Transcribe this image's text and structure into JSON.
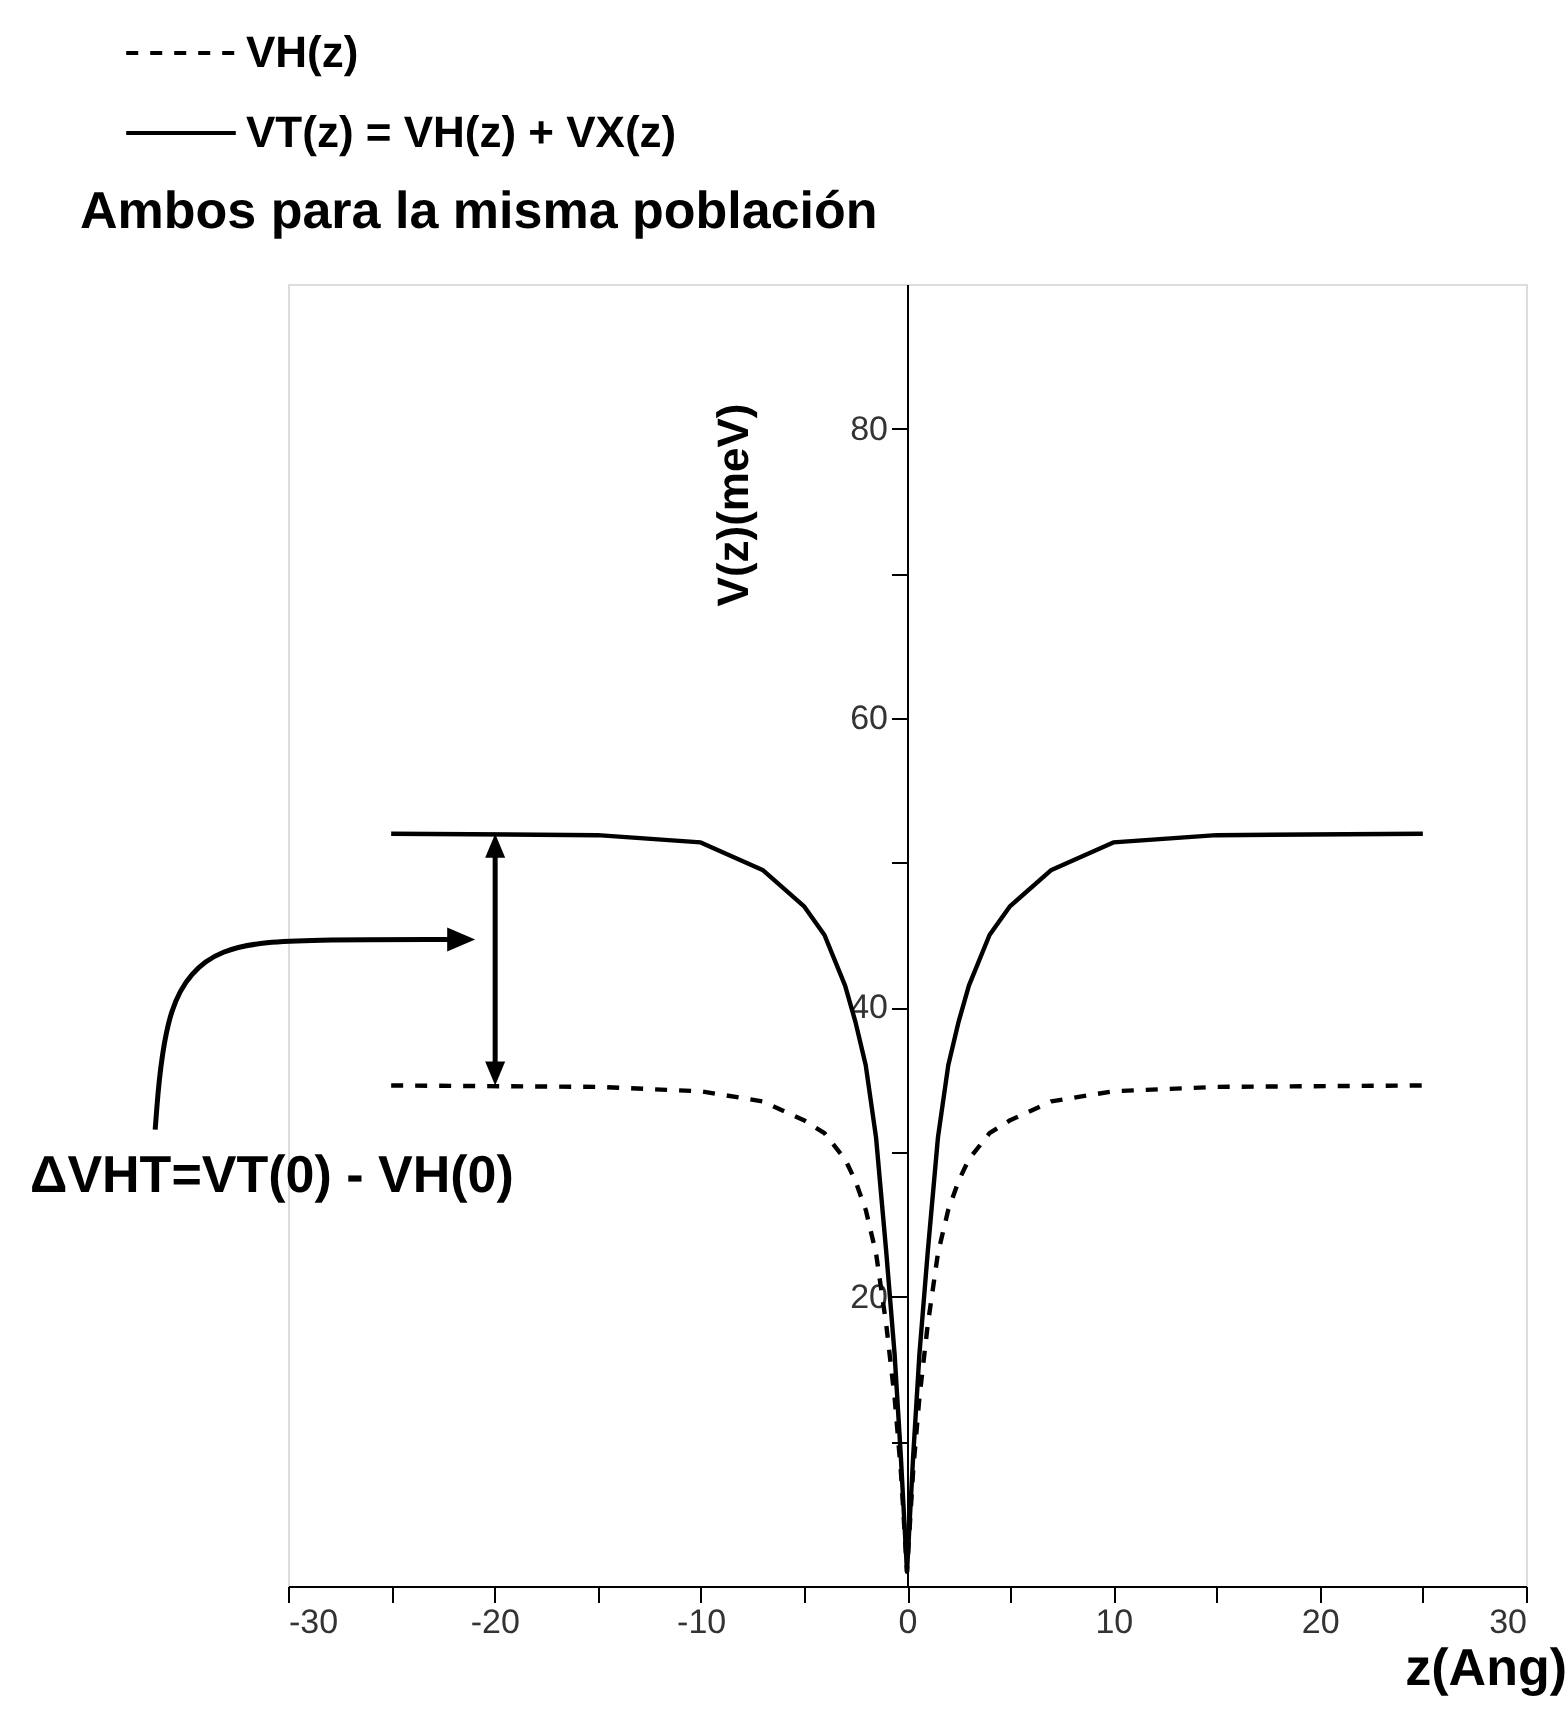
{
  "chart_data": {
    "type": "line",
    "title": "Ambos para la misma población",
    "xlabel": "z(Ang)",
    "ylabel": "V(z)(meV)",
    "x": [
      -25,
      -15,
      -10,
      -7,
      -5,
      -4,
      -3,
      -2.5,
      -2,
      -1.5,
      -1,
      -0.6,
      -0.3,
      0,
      0.3,
      0.6,
      1,
      1.5,
      2,
      2.5,
      3,
      4,
      5,
      7,
      10,
      15,
      25
    ],
    "series": [
      {
        "name": "VH(z)",
        "color": "#000000",
        "line_style": "dashed",
        "values": [
          34.6,
          34.5,
          34.2,
          33.5,
          32.2,
          31.3,
          29.5,
          28,
          26,
          23,
          18,
          13,
          8,
          1,
          8,
          13,
          18,
          23,
          26,
          28,
          29.5,
          31.3,
          32.2,
          33.5,
          34.2,
          34.5,
          34.6
        ]
      },
      {
        "name": "VT(z) = VH(z) + VX(z)",
        "color": "#000000",
        "line_style": "solid",
        "values": [
          52,
          51.9,
          51.4,
          49.5,
          47,
          45,
          41.5,
          39,
          36,
          31,
          23,
          16,
          9,
          1,
          9,
          16,
          23,
          31,
          36,
          39,
          41.5,
          45,
          47,
          49.5,
          51.4,
          51.9,
          52
        ]
      }
    ],
    "xlim": [
      -30,
      30
    ],
    "xticks": [
      -30,
      {
        "value": -25,
        "label": null
      },
      -20,
      {
        "value": -15,
        "label": null
      },
      -10,
      {
        "value": -5,
        "label": null
      },
      0,
      {
        "value": 5,
        "label": null
      },
      10,
      {
        "value": 15,
        "label": null
      },
      20,
      {
        "value": 25,
        "label": null
      },
      30
    ],
    "ylim": [
      0,
      90
    ],
    "yticks": [
      {
        "value": 10,
        "label": null
      },
      20,
      {
        "value": 30,
        "label": null
      },
      40,
      {
        "value": 50,
        "label": null
      },
      60,
      {
        "value": 70,
        "label": null
      },
      80
    ],
    "legend": "top left",
    "annotations": [
      "ΔVHT=VT(0) - VH(0)"
    ]
  }
}
